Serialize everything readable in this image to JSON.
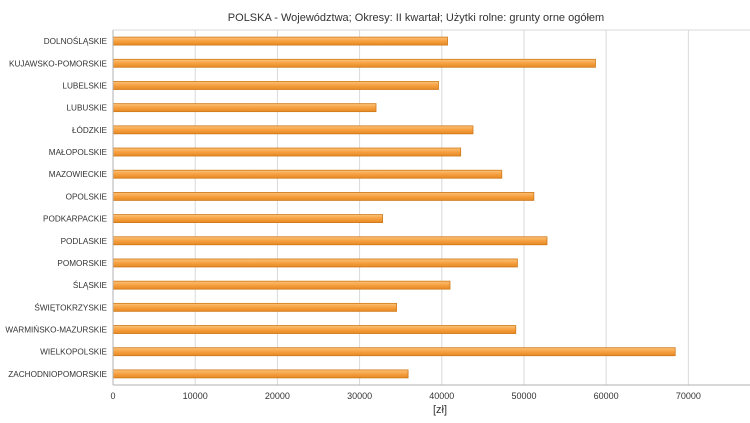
{
  "chart_data": {
    "type": "bar",
    "orientation": "horizontal",
    "title": "POLSKA - Województwa; Okresy: II kwartał; Użytki rolne: grunty orne ogółem",
    "xlabel": "[zł]",
    "ylabel": "",
    "xlim": [
      0,
      77500
    ],
    "xticks": [
      0,
      10000,
      20000,
      30000,
      40000,
      50000,
      60000,
      70000
    ],
    "grid": true,
    "legend": "none",
    "categories": [
      "DOLNOŚLĄSKIE",
      "KUJAWSKO-POMORSKIE",
      "LUBELSKIE",
      "LUBUSKIE",
      "ŁÓDZKIE",
      "MAŁOPOLSKIE",
      "MAZOWIECKIE",
      "OPOLSKIE",
      "PODKARPACKIE",
      "PODLASKIE",
      "POMORSKIE",
      "ŚLĄSKIE",
      "ŚWIĘTOKRZYSKIE",
      "WARMIŃSKO-MAZURSKIE",
      "WIELKOPOLSKIE",
      "ZACHODNIOPOMORSKIE"
    ],
    "values": [
      40700,
      58700,
      39600,
      32000,
      43800,
      42300,
      47300,
      51200,
      32800,
      52800,
      49200,
      41000,
      34500,
      49000,
      68400,
      35900
    ],
    "bar_color": "#f7a040",
    "bar_edge_color": "#d07818",
    "grid_color": "#d9d9d9"
  }
}
